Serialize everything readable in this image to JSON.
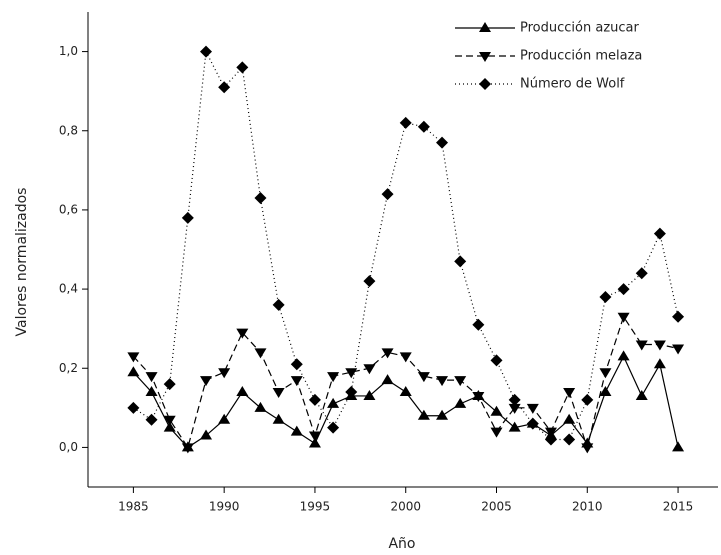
{
  "chart_data": {
    "type": "line",
    "xlabel": "Año",
    "ylabel": "Valores normalizados",
    "x": [
      1985,
      1986,
      1987,
      1988,
      1989,
      1990,
      1991,
      1992,
      1993,
      1994,
      1995,
      1996,
      1997,
      1998,
      1999,
      2000,
      2001,
      2002,
      2003,
      2004,
      2005,
      2006,
      2007,
      2008,
      2009,
      2010,
      2011,
      2012,
      2013,
      2014,
      2015
    ],
    "series": [
      {
        "name": "Producción azucar",
        "color": "#000000",
        "dash": "solid",
        "marker": "triangle-up",
        "values": [
          0.19,
          0.14,
          0.05,
          0.0,
          0.03,
          0.07,
          0.14,
          0.1,
          0.07,
          0.04,
          0.01,
          0.11,
          0.13,
          0.13,
          0.17,
          0.14,
          0.08,
          0.08,
          0.11,
          0.13,
          0.09,
          0.05,
          0.06,
          0.03,
          0.07,
          0.01,
          0.14,
          0.23,
          0.13,
          0.21,
          0.0
        ]
      },
      {
        "name": "Producción melaza",
        "color": "#000000",
        "dash": "dashed",
        "marker": "triangle-down",
        "values": [
          0.23,
          0.18,
          0.07,
          0.0,
          0.17,
          0.19,
          0.29,
          0.24,
          0.14,
          0.17,
          0.03,
          0.18,
          0.19,
          0.2,
          0.24,
          0.23,
          0.18,
          0.17,
          0.17,
          0.13,
          0.04,
          0.1,
          0.1,
          0.04,
          0.14,
          0.0,
          0.19,
          0.33,
          0.26,
          0.26,
          0.25
        ]
      },
      {
        "name": "Número de Wolf",
        "color": "#000000",
        "dash": "dotted",
        "marker": "diamond",
        "values": [
          0.1,
          0.07,
          0.16,
          0.58,
          1.0,
          0.91,
          0.96,
          0.63,
          0.36,
          0.21,
          0.12,
          0.05,
          0.14,
          0.42,
          0.64,
          0.82,
          0.81,
          0.77,
          0.47,
          0.31,
          0.22,
          0.12,
          0.06,
          0.02,
          0.02,
          0.12,
          0.38,
          0.4,
          0.44,
          0.54,
          0.33
        ]
      }
    ],
    "xlim": [
      1982.5,
      2017.2
    ],
    "ylim": [
      -0.1,
      1.1
    ],
    "xticks": [
      1985,
      1990,
      1995,
      2000,
      2005,
      2010,
      2015
    ],
    "yticks": [
      {
        "value": 0,
        "label": "0,0"
      },
      {
        "value": 0.2,
        "label": "0,2"
      },
      {
        "value": 0.4,
        "label": "0,4"
      },
      {
        "value": 0.6,
        "label": "0,6"
      },
      {
        "value": 0.8,
        "label": "0,8"
      },
      {
        "value": 1.0,
        "label": "1,0"
      }
    ],
    "legend": "upper-right"
  }
}
